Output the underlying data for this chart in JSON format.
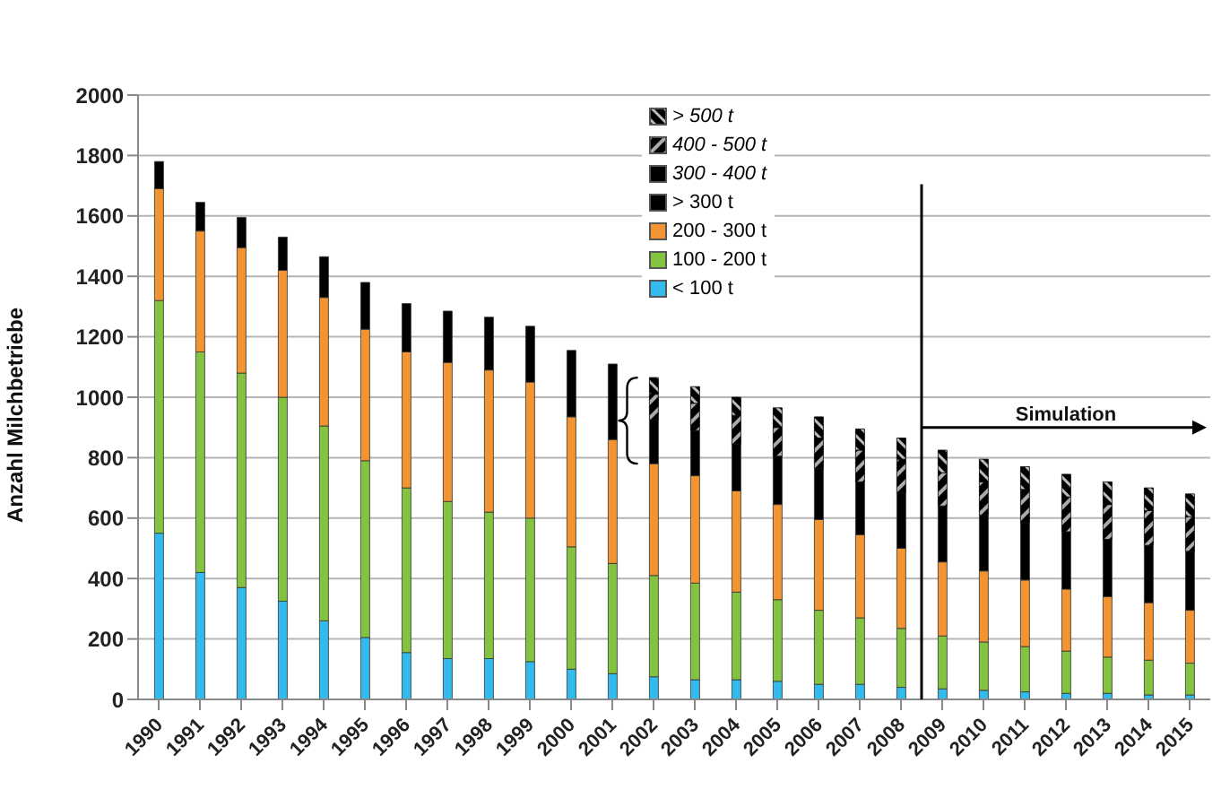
{
  "chart_data": {
    "type": "bar",
    "stacked": true,
    "ylabel": "Anzahl Milchbetriebe",
    "categories": [
      "1990",
      "1991",
      "1992",
      "1993",
      "1994",
      "1995",
      "1996",
      "1997",
      "1998",
      "1999",
      "2000",
      "2001",
      "2002",
      "2003",
      "2004",
      "2005",
      "2006",
      "2007",
      "2008",
      "2009",
      "2010",
      "2011",
      "2012",
      "2013",
      "2014",
      "2015"
    ],
    "series": [
      {
        "name": "< 100 t",
        "color": "#33bbee",
        "values": [
          550,
          420,
          370,
          325,
          260,
          205,
          155,
          135,
          135,
          125,
          100,
          85,
          75,
          65,
          65,
          60,
          50,
          50,
          40,
          35,
          30,
          25,
          20,
          20,
          15,
          15
        ]
      },
      {
        "name": "100 - 200 t",
        "color": "#84c341",
        "values": [
          770,
          730,
          710,
          675,
          645,
          585,
          545,
          520,
          485,
          475,
          405,
          365,
          335,
          320,
          290,
          270,
          245,
          220,
          195,
          175,
          160,
          150,
          140,
          120,
          115,
          105
        ]
      },
      {
        "name": "200 - 300 t",
        "color": "#f39433",
        "values": [
          370,
          400,
          415,
          420,
          425,
          435,
          450,
          460,
          470,
          450,
          430,
          410,
          370,
          355,
          335,
          315,
          300,
          275,
          265,
          245,
          235,
          220,
          205,
          200,
          190,
          175
        ]
      },
      {
        "name": "> 300 t",
        "color": "#000000",
        "values": [
          90,
          95,
          100,
          110,
          135,
          155,
          160,
          170,
          175,
          185,
          220,
          250,
          null,
          null,
          null,
          null,
          null,
          null,
          null,
          null,
          null,
          null,
          null,
          null,
          null,
          null
        ]
      },
      {
        "name": "300 - 400 t",
        "color": "#000000",
        "values": [
          null,
          null,
          null,
          null,
          null,
          null,
          null,
          null,
          null,
          null,
          null,
          null,
          145,
          150,
          155,
          160,
          170,
          175,
          185,
          185,
          185,
          190,
          190,
          190,
          190,
          195
        ]
      },
      {
        "name": "400 - 500 t",
        "color": "#000000",
        "values": [
          null,
          null,
          null,
          null,
          null,
          null,
          null,
          null,
          null,
          null,
          null,
          null,
          85,
          90,
          95,
          95,
          100,
          105,
          110,
          110,
          110,
          110,
          115,
          115,
          115,
          115
        ]
      },
      {
        "name": "> 500 t",
        "color": "#000000",
        "values": [
          null,
          null,
          null,
          null,
          null,
          null,
          null,
          null,
          null,
          null,
          null,
          null,
          55,
          55,
          60,
          65,
          70,
          70,
          70,
          75,
          75,
          75,
          75,
          75,
          75,
          75
        ]
      }
    ],
    "ylim": [
      0,
      2000
    ],
    "yticks": [
      0,
      200,
      400,
      600,
      800,
      1000,
      1200,
      1400,
      1600,
      1800,
      2000
    ],
    "grid": "y",
    "legend": "top",
    "ref_lines": [
      {
        "axis": "x",
        "value": "2009",
        "color": "#000000"
      }
    ],
    "annotations": [
      "Simulation"
    ]
  }
}
